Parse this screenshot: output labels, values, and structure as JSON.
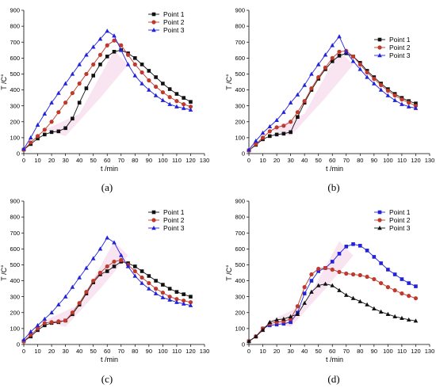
{
  "colors": {
    "black": "#111111",
    "red": "#c0392b",
    "blue": "#2222dd",
    "highlight": "#f2c4e0"
  },
  "chart_data": [
    {
      "type": "line",
      "panel_label": "(a)",
      "xlabel": "t /min",
      "ylabel": "T /C°",
      "xlim": [
        0,
        130
      ],
      "ylim": [
        0,
        900
      ],
      "xticks": [
        0,
        10,
        20,
        30,
        40,
        50,
        60,
        70,
        80,
        90,
        100,
        110,
        120,
        130
      ],
      "yticks": [
        0,
        100,
        200,
        300,
        400,
        500,
        600,
        700,
        800,
        900
      ],
      "legend_position": "top-right",
      "series": [
        {
          "name": "Point 1",
          "color": "#111111",
          "marker": "square",
          "x": [
            0,
            5,
            10,
            15,
            20,
            25,
            30,
            35,
            40,
            45,
            50,
            55,
            60,
            65,
            70,
            75,
            80,
            85,
            90,
            95,
            100,
            105,
            110,
            115,
            120
          ],
          "values": [
            25,
            60,
            95,
            120,
            135,
            140,
            160,
            220,
            320,
            410,
            490,
            560,
            610,
            640,
            650,
            630,
            600,
            560,
            520,
            480,
            440,
            405,
            375,
            350,
            325
          ]
        },
        {
          "name": "Point 2",
          "color": "#c0392b",
          "marker": "circle",
          "x": [
            0,
            5,
            10,
            15,
            20,
            25,
            30,
            35,
            40,
            45,
            50,
            55,
            60,
            65,
            70,
            75,
            80,
            85,
            90,
            95,
            100,
            105,
            110,
            115,
            120
          ],
          "values": [
            25,
            70,
            110,
            150,
            200,
            260,
            320,
            380,
            440,
            500,
            560,
            620,
            680,
            710,
            680,
            620,
            560,
            510,
            460,
            420,
            385,
            355,
            330,
            310,
            295
          ]
        },
        {
          "name": "Point 3",
          "color": "#2222dd",
          "marker": "triangle",
          "x": [
            0,
            5,
            10,
            15,
            20,
            25,
            30,
            35,
            40,
            45,
            50,
            55,
            60,
            65,
            70,
            75,
            80,
            85,
            90,
            95,
            100,
            105,
            110,
            115,
            120
          ],
          "values": [
            30,
            100,
            180,
            250,
            320,
            380,
            440,
            500,
            560,
            620,
            670,
            720,
            770,
            740,
            650,
            560,
            490,
            440,
            400,
            365,
            335,
            310,
            295,
            285,
            275
          ]
        }
      ]
    },
    {
      "type": "line",
      "panel_label": "(b)",
      "xlabel": "t /min",
      "ylabel": "T /C°",
      "xlim": [
        0,
        130
      ],
      "ylim": [
        0,
        900
      ],
      "xticks": [
        0,
        10,
        20,
        30,
        40,
        50,
        60,
        70,
        80,
        90,
        100,
        110,
        120,
        130
      ],
      "yticks": [
        0,
        100,
        200,
        300,
        400,
        500,
        600,
        700,
        800,
        900
      ],
      "legend_position": "top-right",
      "series": [
        {
          "name": "Point 1",
          "color": "#111111",
          "marker": "square",
          "x": [
            0,
            5,
            10,
            15,
            20,
            25,
            30,
            35,
            40,
            45,
            50,
            55,
            60,
            65,
            70,
            75,
            80,
            85,
            90,
            95,
            100,
            105,
            110,
            115,
            120
          ],
          "values": [
            20,
            55,
            90,
            110,
            120,
            125,
            135,
            230,
            320,
            400,
            470,
            530,
            580,
            615,
            630,
            610,
            570,
            520,
            480,
            440,
            405,
            375,
            350,
            330,
            315
          ]
        },
        {
          "name": "Point 2",
          "color": "#c0392b",
          "marker": "circle",
          "x": [
            0,
            5,
            10,
            15,
            20,
            25,
            30,
            35,
            40,
            45,
            50,
            55,
            60,
            65,
            70,
            75,
            80,
            85,
            90,
            95,
            100,
            105,
            110,
            115,
            120
          ],
          "values": [
            20,
            60,
            100,
            140,
            165,
            175,
            200,
            260,
            330,
            410,
            480,
            540,
            600,
            640,
            645,
            610,
            560,
            510,
            470,
            430,
            395,
            365,
            340,
            320,
            300
          ]
        },
        {
          "name": "Point 3",
          "color": "#2222dd",
          "marker": "triangle",
          "x": [
            0,
            5,
            10,
            15,
            20,
            25,
            30,
            35,
            40,
            45,
            50,
            55,
            60,
            65,
            70,
            75,
            80,
            85,
            90,
            95,
            100,
            105,
            110,
            115,
            120
          ],
          "values": [
            25,
            80,
            130,
            170,
            210,
            260,
            320,
            370,
            430,
            500,
            560,
            620,
            680,
            735,
            640,
            580,
            530,
            480,
            440,
            400,
            365,
            335,
            310,
            295,
            285
          ]
        }
      ]
    },
    {
      "type": "line",
      "panel_label": "(c)",
      "xlabel": "t /min",
      "ylabel": "T /C°",
      "xlim": [
        0,
        130
      ],
      "ylim": [
        0,
        900
      ],
      "xticks": [
        0,
        10,
        20,
        30,
        40,
        50,
        60,
        70,
        80,
        90,
        100,
        110,
        120,
        130
      ],
      "yticks": [
        0,
        100,
        200,
        300,
        400,
        500,
        600,
        700,
        800,
        900
      ],
      "legend_position": "top-right",
      "series": [
        {
          "name": "Point 1",
          "color": "#111111",
          "marker": "square",
          "x": [
            0,
            5,
            10,
            15,
            20,
            25,
            30,
            35,
            40,
            45,
            50,
            55,
            60,
            65,
            70,
            75,
            80,
            85,
            90,
            95,
            100,
            105,
            110,
            115,
            120
          ],
          "values": [
            20,
            50,
            90,
            120,
            135,
            140,
            150,
            190,
            250,
            320,
            390,
            440,
            460,
            490,
            520,
            510,
            490,
            460,
            430,
            400,
            375,
            350,
            330,
            315,
            300
          ]
        },
        {
          "name": "Point 2",
          "color": "#c0392b",
          "marker": "circle",
          "x": [
            0,
            5,
            10,
            15,
            20,
            25,
            30,
            35,
            40,
            45,
            50,
            55,
            60,
            65,
            70,
            75,
            80,
            85,
            90,
            95,
            100,
            105,
            110,
            115,
            120
          ],
          "values": [
            20,
            60,
            100,
            135,
            140,
            145,
            150,
            200,
            260,
            330,
            400,
            450,
            490,
            520,
            530,
            500,
            460,
            420,
            385,
            350,
            325,
            300,
            285,
            275,
            265
          ]
        },
        {
          "name": "Point 3",
          "color": "#2222dd",
          "marker": "triangle",
          "x": [
            0,
            5,
            10,
            15,
            20,
            25,
            30,
            35,
            40,
            45,
            50,
            55,
            60,
            65,
            70,
            75,
            80,
            85,
            90,
            95,
            100,
            105,
            110,
            115,
            120
          ],
          "values": [
            30,
            80,
            120,
            160,
            200,
            250,
            300,
            360,
            420,
            480,
            540,
            600,
            670,
            640,
            560,
            490,
            430,
            385,
            350,
            320,
            295,
            280,
            265,
            255,
            245
          ]
        }
      ]
    },
    {
      "type": "line",
      "panel_label": "(d)",
      "xlabel": "t /min",
      "ylabel": "T /C°",
      "xlim": [
        0,
        130
      ],
      "ylim": [
        0,
        900
      ],
      "xticks": [
        0,
        10,
        20,
        30,
        40,
        50,
        60,
        70,
        80,
        90,
        100,
        110,
        120,
        130
      ],
      "yticks": [
        0,
        100,
        200,
        300,
        400,
        500,
        600,
        700,
        800,
        900
      ],
      "legend_position": "top-right",
      "series": [
        {
          "name": "Point 1",
          "color": "#2222dd",
          "marker": "square",
          "x": [
            0,
            5,
            10,
            15,
            20,
            25,
            30,
            35,
            40,
            45,
            50,
            55,
            60,
            65,
            70,
            75,
            80,
            85,
            90,
            95,
            100,
            105,
            110,
            115,
            120
          ],
          "values": [
            20,
            50,
            100,
            120,
            125,
            130,
            140,
            200,
            320,
            400,
            460,
            480,
            520,
            570,
            615,
            630,
            620,
            590,
            550,
            510,
            470,
            440,
            410,
            385,
            365
          ]
        },
        {
          "name": "Point 2",
          "color": "#c0392b",
          "marker": "circle",
          "x": [
            0,
            5,
            10,
            15,
            20,
            25,
            30,
            35,
            40,
            45,
            50,
            55,
            60,
            65,
            70,
            75,
            80,
            85,
            90,
            95,
            100,
            105,
            110,
            115,
            120
          ],
          "values": [
            20,
            50,
            100,
            130,
            140,
            145,
            160,
            240,
            360,
            440,
            475,
            480,
            470,
            455,
            445,
            440,
            435,
            425,
            410,
            385,
            360,
            340,
            320,
            305,
            290
          ]
        },
        {
          "name": "Point 3",
          "color": "#111111",
          "marker": "triangle",
          "x": [
            0,
            5,
            10,
            15,
            20,
            25,
            30,
            35,
            40,
            45,
            50,
            55,
            60,
            65,
            70,
            75,
            80,
            85,
            90,
            95,
            100,
            105,
            110,
            115,
            120
          ],
          "values": [
            20,
            50,
            90,
            140,
            155,
            160,
            175,
            190,
            260,
            330,
            370,
            380,
            370,
            340,
            310,
            290,
            270,
            250,
            225,
            205,
            190,
            175,
            165,
            155,
            148
          ]
        }
      ]
    }
  ]
}
